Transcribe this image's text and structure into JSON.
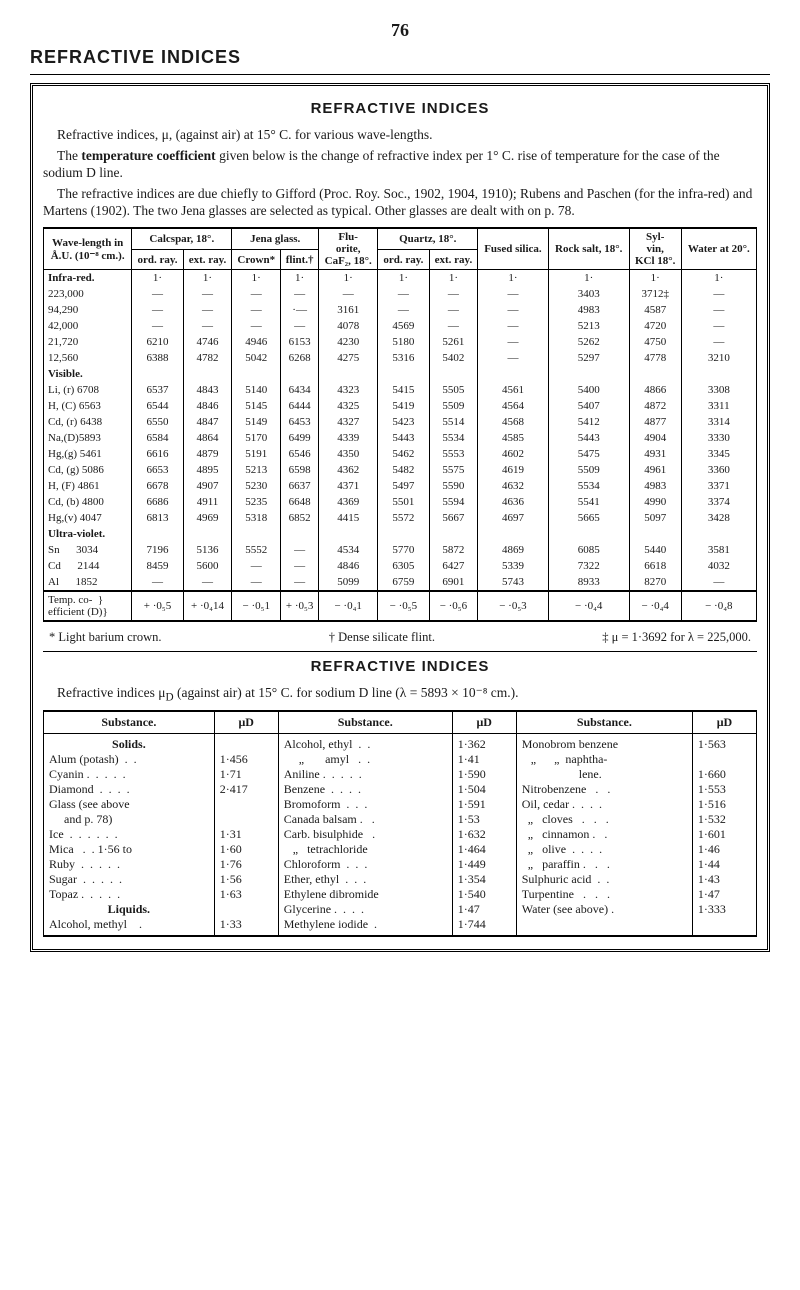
{
  "page_number": "76",
  "section_heading": "REFRACTIVE INDICES",
  "box_title": "REFRACTIVE  INDICES",
  "intro": {
    "p1": "Refractive indices, μ, (against air) at 15° C. for various wave-lengths.",
    "p2_a": "The ",
    "p2_b": "temperature coefficient",
    "p2_c": " given below is the change of refractive index per 1° C. rise of temperature for the case of the sodium D line.",
    "p3": "The refractive indices are due chiefly to Gifford (Proc. Roy. Soc., 1902, 1904, 1910); Rubens and Paschen (for the infra-red) and Martens (1902). The two Jena glasses are selected as typical.  Other glasses are dealt with on p. 78."
  },
  "main_table": {
    "head": {
      "wavelength_top": "Wave-length in",
      "wavelength_bot": "Å.U. (10⁻⁸ cm.).",
      "calcspar": "Calcspar, 18°.",
      "jena": "Jena glass.",
      "fluorite_top": "Flu-",
      "fluorite_mid": "orite,",
      "fluorite_bot": "CaF₂, 18°.",
      "quartz": "Quartz, 18°.",
      "fused": "Fused silica.",
      "rock": "Rock salt, 18°.",
      "sylvin_top": "Syl-",
      "sylvin_mid": "vin,",
      "sylvin_bot": "KCl 18°.",
      "water": "Water at 20°.",
      "ord": "ord. ray.",
      "ext": "ext. ray.",
      "crown": "Crown*",
      "flint": "flint.†"
    },
    "groups": {
      "infra": "Infra-red.",
      "visible": "Visible.",
      "uv": "Ultra-violet.",
      "temp": "Temp. co-\nefficient (D)"
    },
    "rows": [
      {
        "label": "Infra-red.",
        "bold": true,
        "cells": [
          "1·",
          "1·",
          "1·",
          "1·",
          "1·",
          "1·",
          "1·",
          "1·",
          "1·",
          "1·",
          "1·"
        ]
      },
      {
        "label": "223,000",
        "cells": [
          "—",
          "—",
          "—",
          "—",
          "—",
          "—",
          "—",
          "—",
          "3403",
          "3712‡",
          "—"
        ]
      },
      {
        "label": "94,290",
        "cells": [
          "—",
          "—",
          "—",
          "·—",
          "3161",
          "—",
          "—",
          "—",
          "4983",
          "4587",
          "—"
        ]
      },
      {
        "label": "42,000",
        "cells": [
          "—",
          "—",
          "—",
          "—",
          "4078",
          "4569",
          "—",
          "—",
          "5213",
          "4720",
          "—"
        ]
      },
      {
        "label": "21,720",
        "cells": [
          "6210",
          "4746",
          "4946",
          "6153",
          "4230",
          "5180",
          "5261",
          "—",
          "5262",
          "4750",
          "—"
        ]
      },
      {
        "label": "12,560",
        "cells": [
          "6388",
          "4782",
          "5042",
          "6268",
          "4275",
          "5316",
          "5402",
          "—",
          "5297",
          "4778",
          "3210"
        ]
      },
      {
        "label": "Visible.",
        "bold": true,
        "cells": [
          "",
          "",
          "",
          "",
          "",
          "",
          "",
          "",
          "",
          "",
          ""
        ]
      },
      {
        "label": "Li, (r) 6708",
        "cells": [
          "6537",
          "4843",
          "5140",
          "6434",
          "4323",
          "5415",
          "5505",
          "4561",
          "5400",
          "4866",
          "3308"
        ]
      },
      {
        "label": "H, (C) 6563",
        "cells": [
          "6544",
          "4846",
          "5145",
          "6444",
          "4325",
          "5419",
          "5509",
          "4564",
          "5407",
          "4872",
          "3311"
        ]
      },
      {
        "label": "Cd, (r) 6438",
        "cells": [
          "6550",
          "4847",
          "5149",
          "6453",
          "4327",
          "5423",
          "5514",
          "4568",
          "5412",
          "4877",
          "3314"
        ]
      },
      {
        "label": "Na,(D)5893",
        "cells": [
          "6584",
          "4864",
          "5170",
          "6499",
          "4339",
          "5443",
          "5534",
          "4585",
          "5443",
          "4904",
          "3330"
        ]
      },
      {
        "label": "Hg,(g) 5461",
        "cells": [
          "6616",
          "4879",
          "5191",
          "6546",
          "4350",
          "5462",
          "5553",
          "4602",
          "5475",
          "4931",
          "3345"
        ]
      },
      {
        "label": "Cd, (g) 5086",
        "cells": [
          "6653",
          "4895",
          "5213",
          "6598",
          "4362",
          "5482",
          "5575",
          "4619",
          "5509",
          "4961",
          "3360"
        ]
      },
      {
        "label": "H, (F) 4861",
        "cells": [
          "6678",
          "4907",
          "5230",
          "6637",
          "4371",
          "5497",
          "5590",
          "4632",
          "5534",
          "4983",
          "3371"
        ]
      },
      {
        "label": "Cd, (b) 4800",
        "cells": [
          "6686",
          "4911",
          "5235",
          "6648",
          "4369",
          "5501",
          "5594",
          "4636",
          "5541",
          "4990",
          "3374"
        ]
      },
      {
        "label": "Hg,(v) 4047",
        "cells": [
          "6813",
          "4969",
          "5318",
          "6852",
          "4415",
          "5572",
          "5667",
          "4697",
          "5665",
          "5097",
          "3428"
        ]
      },
      {
        "label": "Ultra-violet.",
        "bold": true,
        "cells": [
          "",
          "",
          "",
          "",
          "",
          "",
          "",
          "",
          "",
          "",
          ""
        ]
      },
      {
        "label": "Sn      3034",
        "cells": [
          "7196",
          "5136",
          "5552",
          "—",
          "4534",
          "5770",
          "5872",
          "4869",
          "6085",
          "5440",
          "3581"
        ]
      },
      {
        "label": "Cd      2144",
        "cells": [
          "8459",
          "5600",
          "—",
          "—",
          "4846",
          "6305",
          "6427",
          "5339",
          "7322",
          "6618",
          "4032"
        ]
      },
      {
        "label": "Al      1852",
        "cells": [
          "—",
          "—",
          "—",
          "—",
          "5099",
          "6759",
          "6901",
          "5743",
          "8933",
          "8270",
          "—"
        ]
      }
    ],
    "temp_row": {
      "label": "Temp. co-  }\nefficient (D)}",
      "cells": [
        "+ ·0₅5",
        "+ ·0₄14",
        "− ·0₅1",
        "+ ·0₅3",
        "− ·0₄1",
        "− ·0₅5",
        "− ·0₅6",
        "− ·0₅3",
        "− ·0₄4",
        "− ·0₄4",
        "− ·0₄8"
      ]
    }
  },
  "footnotes": {
    "f1": "* Light barium crown.",
    "f2": "† Dense silicate flint.",
    "f3": "‡ μ = 1·3692 for λ = 225,000."
  },
  "sub_title": "REFRACTIVE  INDICES",
  "sub_intro_a": "Refractive indices μ",
  "sub_intro_sub": "D",
  "sub_intro_b": " (against air) at 15° C. for sodium D line (λ = 5893 × 10⁻⁸ cm.).",
  "sub_table": {
    "head": {
      "substance": "Substance.",
      "mu": "μD"
    },
    "cols": [
      {
        "groups": [
          {
            "title": "Solids.",
            "rows": [
              {
                "n": "Alum (potash)  .  .",
                "v": "1·456"
              },
              {
                "n": "Cyanin .  .  .  .  .",
                "v": "1·71"
              },
              {
                "n": "Diamond  .  .  .  .",
                "v": "2·417"
              },
              {
                "n": "Glass (see above\n     and p. 78)",
                "v": ""
              },
              {
                "n": "Ice  .  .  .  .  .  .",
                "v": "1·31"
              },
              {
                "n": "Mica   .  . 1·56 to",
                "v": "1·60"
              },
              {
                "n": "Ruby  .  .  .  .  .",
                "v": "1·76"
              },
              {
                "n": "Sugar  .  .  .  .  .",
                "v": "1·56"
              },
              {
                "n": "Topaz .  .  .  .  .",
                "v": "1·63"
              }
            ]
          },
          {
            "title": "Liquids.",
            "rows": [
              {
                "n": "Alcohol, methyl    .",
                "v": "1·33"
              }
            ]
          }
        ]
      },
      {
        "groups": [
          {
            "title": "",
            "rows": [
              {
                "n": "Alcohol, ethyl  .  .",
                "v": "1·362"
              },
              {
                "n": "     „       amyl   .  .",
                "v": "1·41"
              },
              {
                "n": "Aniline .  .  .  .  .",
                "v": "1·590"
              },
              {
                "n": "Benzene  .  .  .  .",
                "v": "1·504"
              },
              {
                "n": "Bromoform  .  .  .",
                "v": "1·591"
              },
              {
                "n": "Canada balsam .   .",
                "v": "1·53"
              },
              {
                "n": "Carb. bisulphide   .",
                "v": "1·632"
              },
              {
                "n": "   „   tetrachloride",
                "v": "1·464"
              },
              {
                "n": "Chloroform  .  .  .",
                "v": "1·449"
              },
              {
                "n": "Ether, ethyl  .  .  .",
                "v": "1·354"
              },
              {
                "n": "Ethylene dibromide",
                "v": "1·540"
              },
              {
                "n": "Glycerine .  .  .  .",
                "v": "1·47"
              },
              {
                "n": "Methylene iodide  .",
                "v": "1·744"
              }
            ]
          }
        ]
      },
      {
        "groups": [
          {
            "title": "",
            "rows": [
              {
                "n": "Monobrom benzene",
                "v": "1·563"
              },
              {
                "n": "   „      „  naphtha-\n                   lene.",
                "v": "1·660"
              },
              {
                "n": "Nitrobenzene   .   .",
                "v": "1·553"
              },
              {
                "n": "Oil, cedar .  .  .  .",
                "v": "1·516"
              },
              {
                "n": "  „   cloves   .   .   .",
                "v": "1·532"
              },
              {
                "n": "  „   cinnamon .   .",
                "v": "1·601"
              },
              {
                "n": "  „   olive  .  .  .  .",
                "v": "1·46"
              },
              {
                "n": "  „   paraffin .   .   .",
                "v": "1·44"
              },
              {
                "n": "Sulphuric acid  .  .",
                "v": "1·43"
              },
              {
                "n": "Turpentine   .   .   .",
                "v": "1·47"
              },
              {
                "n": "Water (see above) .",
                "v": "1·333"
              }
            ]
          }
        ]
      }
    ]
  }
}
